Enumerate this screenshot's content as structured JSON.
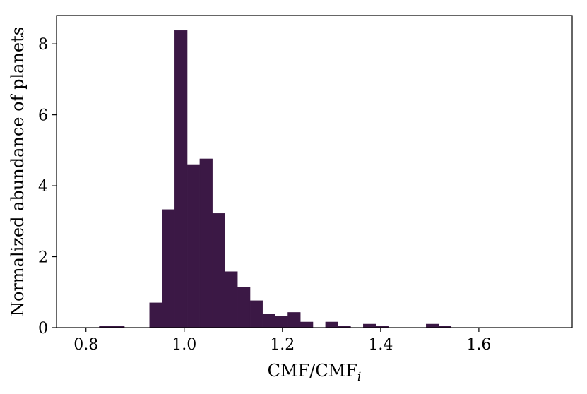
{
  "chart_data": {
    "type": "bar",
    "histogram": true,
    "xlabel": "CMF/CMF",
    "xlabel_subscript": "i",
    "ylabel": "Normalized abundance of planets",
    "xlim": [
      0.74,
      1.79
    ],
    "ylim": [
      0,
      8.8
    ],
    "x_ticks": [
      "0.8",
      "1.0",
      "1.2",
      "1.4",
      "1.6"
    ],
    "y_ticks": [
      "0",
      "2",
      "4",
      "6",
      "8"
    ],
    "bin_width": 0.0256,
    "bin_start": 0.827,
    "values": [
      0.05,
      0.05,
      0,
      0,
      0.7,
      3.33,
      8.38,
      4.6,
      4.76,
      3.22,
      1.58,
      1.15,
      0.76,
      0.38,
      0.33,
      0.43,
      0.16,
      0,
      0.16,
      0.05,
      0,
      0.1,
      0.05,
      0,
      0,
      0,
      0.1,
      0.05
    ],
    "bar_color": "#3b1845",
    "grid": false
  }
}
